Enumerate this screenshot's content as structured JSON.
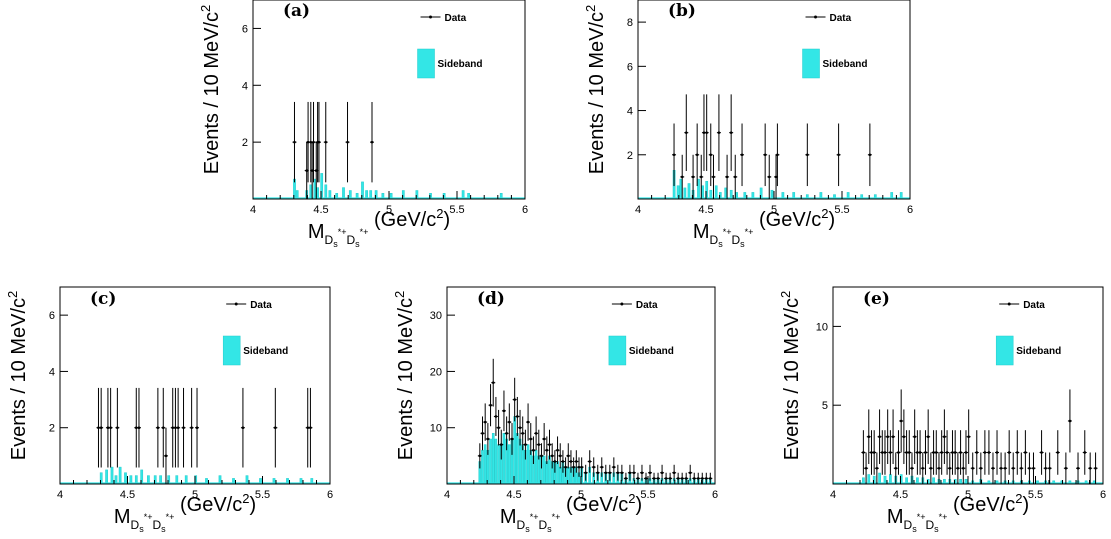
{
  "figure": {
    "ylabel": "Events / 10 MeV/c",
    "ylabel_sup": "2",
    "xlabel_main": "M",
    "xlabel_sub": "D",
    "xlabel_sub2": "s",
    "xlabel_sub_sup": "*+",
    "xlabel_sub3": "D",
    "xlabel_sub4": "s",
    "xlabel_sub4_sup": "*+",
    "xlabel_unit": "(GeV/c",
    "xlabel_unit_sup": "2",
    "xlabel_unit_close": ")",
    "legend_data": "Data",
    "legend_sideband": "Sideband"
  },
  "colors": {
    "sideband": "#33e6e6",
    "data": "#000000"
  },
  "chart_data": [
    {
      "type": "bar",
      "panel_label": "(a)",
      "xlim": [
        4,
        6
      ],
      "ylim": [
        0,
        7
      ],
      "xticks": [
        "4",
        "4.5",
        "5",
        "5.5",
        "6"
      ],
      "yticks": [
        "2",
        "4",
        "6"
      ],
      "ytick_values": [
        2,
        4,
        6
      ],
      "xtick_values": [
        4,
        4.5,
        5,
        5.5,
        6
      ],
      "series": [
        {
          "name": "Data",
          "x": [
            4.305,
            4.395,
            4.405,
            4.425,
            4.435,
            4.445,
            4.465,
            4.475,
            4.485,
            4.535,
            4.695,
            4.875
          ],
          "y": [
            2,
            1,
            2,
            2,
            1,
            2,
            1,
            2,
            2,
            2,
            2,
            2
          ]
        },
        {
          "name": "Sideband",
          "x": [
            4.305,
            4.325,
            4.395,
            4.425,
            4.455,
            4.475,
            4.505,
            4.535,
            4.565,
            4.615,
            4.665,
            4.715,
            4.765,
            4.805,
            4.835,
            4.865,
            4.905,
            4.955,
            5.015,
            5.105,
            5.205,
            5.305,
            5.405,
            5.545,
            5.585,
            5.825
          ],
          "y": [
            0.7,
            0.3,
            0.3,
            0.5,
            0.7,
            0.4,
            0.9,
            0.5,
            0.3,
            0.2,
            0.4,
            0.3,
            0.2,
            0.6,
            0.3,
            0.3,
            0.3,
            0.2,
            0.2,
            0.3,
            0.3,
            0.2,
            0.2,
            0.3,
            0.2,
            0.2
          ]
        }
      ]
    },
    {
      "type": "bar",
      "panel_label": "(b)",
      "xlim": [
        4,
        6
      ],
      "ylim": [
        0,
        9
      ],
      "xticks": [
        "4",
        "4.5",
        "5",
        "5.5",
        "6"
      ],
      "yticks": [
        "2",
        "4",
        "6",
        "8"
      ],
      "ytick_values": [
        2,
        4,
        6,
        8
      ],
      "xtick_values": [
        4,
        4.5,
        5,
        5.5,
        6
      ],
      "series": [
        {
          "name": "Data",
          "x": [
            4.265,
            4.325,
            4.355,
            4.405,
            4.435,
            4.465,
            4.485,
            4.505,
            4.535,
            4.555,
            4.595,
            4.655,
            4.685,
            4.715,
            4.765,
            4.935,
            4.965,
            5.015,
            5.025,
            5.245,
            5.475,
            5.705
          ],
          "y": [
            2,
            1,
            3,
            1,
            2,
            1,
            3,
            3,
            2,
            1,
            3,
            1,
            3,
            1,
            2,
            2,
            1,
            1,
            2,
            2,
            2,
            2
          ]
        },
        {
          "name": "Sideband",
          "x": [
            4.265,
            4.295,
            4.315,
            4.345,
            4.375,
            4.405,
            4.445,
            4.475,
            4.505,
            4.535,
            4.575,
            4.605,
            4.645,
            4.685,
            4.725,
            4.785,
            4.845,
            4.905,
            4.985,
            5.065,
            5.145,
            5.245,
            5.345,
            5.445,
            5.545,
            5.645,
            5.745,
            5.865,
            5.935
          ],
          "y": [
            1.3,
            0.6,
            0.9,
            0.5,
            0.7,
            0.4,
            0.9,
            0.6,
            0.8,
            0.4,
            0.6,
            0.3,
            0.5,
            0.4,
            0.3,
            0.3,
            0.3,
            0.5,
            0.4,
            0.3,
            0.3,
            0.2,
            0.3,
            0.2,
            0.3,
            0.2,
            0.2,
            0.3,
            0.3
          ]
        }
      ]
    },
    {
      "type": "bar",
      "panel_label": "(c)",
      "xlim": [
        4,
        6
      ],
      "ylim": [
        0,
        7
      ],
      "xticks": [
        "4",
        "4.5",
        "5",
        "5.5",
        "6"
      ],
      "yticks": [
        "2",
        "4",
        "6"
      ],
      "ytick_values": [
        2,
        4,
        6
      ],
      "xtick_values": [
        4,
        4.5,
        5,
        5.5,
        6
      ],
      "series": [
        {
          "name": "Data",
          "x": [
            4.285,
            4.305,
            4.355,
            4.375,
            4.425,
            4.565,
            4.585,
            4.725,
            4.765,
            4.785,
            4.835,
            4.855,
            4.875,
            4.915,
            4.975,
            5.015,
            5.355,
            5.595,
            5.835,
            5.855
          ],
          "y": [
            2,
            2,
            2,
            2,
            2,
            2,
            2,
            2,
            2,
            1,
            2,
            2,
            2,
            2,
            2,
            2,
            2,
            2,
            2,
            2
          ]
        },
        {
          "name": "Sideband",
          "x": [
            4.305,
            4.345,
            4.385,
            4.415,
            4.445,
            4.485,
            4.525,
            4.565,
            4.605,
            4.655,
            4.705,
            4.745,
            4.805,
            4.865,
            4.935,
            5.005,
            5.085,
            5.185,
            5.285,
            5.385,
            5.485,
            5.585,
            5.685,
            5.785,
            5.865
          ],
          "y": [
            0.4,
            0.5,
            0.6,
            0.3,
            0.6,
            0.4,
            0.3,
            0.3,
            0.5,
            0.3,
            0.3,
            0.3,
            0.3,
            0.3,
            0.3,
            0.3,
            0.2,
            0.3,
            0.2,
            0.3,
            0.2,
            0.2,
            0.2,
            0.2,
            0.2
          ]
        }
      ]
    },
    {
      "type": "bar",
      "panel_label": "(d)",
      "xlim": [
        4,
        6
      ],
      "ylim": [
        0,
        35
      ],
      "xticks": [
        "4",
        "4.5",
        "5",
        "5.5",
        "6"
      ],
      "yticks": [
        "10",
        "20",
        "30"
      ],
      "ytick_values": [
        10,
        20,
        30
      ],
      "xtick_values": [
        4,
        4.5,
        5,
        5.5,
        6
      ],
      "series": [
        {
          "name": "Data",
          "x": [
            4.245,
            4.265,
            4.285,
            4.305,
            4.325,
            4.345,
            4.365,
            4.385,
            4.405,
            4.425,
            4.445,
            4.465,
            4.485,
            4.505,
            4.525,
            4.545,
            4.565,
            4.585,
            4.605,
            4.625,
            4.645,
            4.665,
            4.685,
            4.705,
            4.725,
            4.745,
            4.765,
            4.785,
            4.805,
            4.825,
            4.845,
            4.865,
            4.885,
            4.905,
            4.925,
            4.945,
            4.965,
            4.985,
            5.005,
            5.035,
            5.065,
            5.095,
            5.125,
            5.155,
            5.185,
            5.215,
            5.245,
            5.275,
            5.305,
            5.335,
            5.365,
            5.395,
            5.425,
            5.455,
            5.485,
            5.515,
            5.545,
            5.575,
            5.605,
            5.635,
            5.665,
            5.695,
            5.725,
            5.755,
            5.785,
            5.815,
            5.845,
            5.875,
            5.905,
            5.935,
            5.965
          ],
          "y": [
            5,
            9,
            11,
            8,
            14,
            18,
            12,
            10,
            7,
            13,
            9,
            11,
            8,
            15,
            12,
            10,
            9,
            7,
            11,
            8,
            6,
            9,
            7,
            5,
            8,
            6,
            7,
            5,
            4,
            6,
            5,
            4,
            3,
            5,
            4,
            3,
            4,
            3,
            3,
            2,
            4,
            3,
            2,
            3,
            2,
            2,
            3,
            2,
            2,
            1,
            2,
            2,
            1,
            2,
            1,
            2,
            1,
            1,
            2,
            1,
            1,
            2,
            1,
            1,
            1,
            2,
            1,
            1,
            1,
            1,
            1
          ]
        },
        {
          "name": "Sideband",
          "x": [
            4.245,
            4.265,
            4.285,
            4.305,
            4.325,
            4.345,
            4.365,
            4.385,
            4.405,
            4.425,
            4.445,
            4.465,
            4.485,
            4.505,
            4.525,
            4.545,
            4.565,
            4.585,
            4.605,
            4.625,
            4.645,
            4.665,
            4.685,
            4.705,
            4.725,
            4.745,
            4.765,
            4.785,
            4.805,
            4.825,
            4.845,
            4.865,
            4.885,
            4.905,
            4.925,
            4.945,
            4.965,
            4.985,
            5.005,
            5.035,
            5.065,
            5.095,
            5.125,
            5.155,
            5.185,
            5.215,
            5.245,
            5.275,
            5.305,
            5.335,
            5.365,
            5.395,
            5.425,
            5.455,
            5.485,
            5.515,
            5.545,
            5.575,
            5.605,
            5.635,
            5.665,
            5.695,
            5.725,
            5.755,
            5.785,
            5.815,
            5.845,
            5.875,
            5.905,
            5.935,
            5.965
          ],
          "y": [
            4,
            6,
            7,
            6,
            8,
            9,
            8,
            7,
            7,
            9,
            8,
            7,
            8,
            12,
            9,
            8,
            7,
            6,
            7,
            6,
            5,
            6,
            5,
            5,
            5,
            4,
            5,
            4,
            4,
            4,
            3,
            4,
            3,
            3,
            3,
            3,
            3,
            2,
            3,
            2,
            3,
            2,
            2,
            2,
            2,
            2,
            2,
            2,
            2,
            1,
            2,
            1,
            1,
            1,
            1,
            1,
            1,
            1,
            1,
            1,
            1,
            1,
            1,
            1,
            1,
            1,
            1,
            1,
            1,
            1,
            1
          ]
        }
      ]
    },
    {
      "type": "bar",
      "panel_label": "(e)",
      "xlim": [
        4,
        6
      ],
      "ylim": [
        0,
        12.5
      ],
      "xticks": [
        "4",
        "4.5",
        "5",
        "5.5",
        "6"
      ],
      "yticks": [
        "5",
        "10"
      ],
      "ytick_values": [
        5,
        10
      ],
      "xtick_values": [
        4,
        4.5,
        5,
        5.5,
        6
      ],
      "series": [
        {
          "name": "Data",
          "x": [
            4.225,
            4.245,
            4.265,
            4.285,
            4.305,
            4.325,
            4.345,
            4.365,
            4.385,
            4.405,
            4.425,
            4.445,
            4.465,
            4.485,
            4.505,
            4.525,
            4.545,
            4.565,
            4.585,
            4.605,
            4.625,
            4.645,
            4.665,
            4.685,
            4.705,
            4.725,
            4.745,
            4.765,
            4.785,
            4.805,
            4.825,
            4.845,
            4.865,
            4.885,
            4.905,
            4.925,
            4.945,
            4.965,
            4.985,
            5.005,
            5.035,
            5.065,
            5.095,
            5.125,
            5.155,
            5.185,
            5.215,
            5.245,
            5.275,
            5.305,
            5.335,
            5.365,
            5.395,
            5.425,
            5.455,
            5.485,
            5.545,
            5.575,
            5.605,
            5.665,
            5.725,
            5.755,
            5.815,
            5.865,
            5.905,
            5.945
          ],
          "y": [
            2,
            1,
            3,
            2,
            2,
            1,
            3,
            2,
            2,
            3,
            2,
            3,
            1,
            2,
            4,
            3,
            2,
            2,
            1,
            3,
            2,
            2,
            1,
            2,
            3,
            1,
            2,
            2,
            1,
            2,
            3,
            2,
            1,
            2,
            2,
            1,
            2,
            1,
            2,
            3,
            1,
            2,
            1,
            2,
            2,
            1,
            2,
            1,
            1,
            2,
            1,
            2,
            1,
            2,
            1,
            1,
            2,
            1,
            1,
            2,
            1,
            4,
            1,
            2,
            1,
            1
          ]
        },
        {
          "name": "Sideband",
          "x": [
            4.225,
            4.265,
            4.305,
            4.345,
            4.385,
            4.425,
            4.465,
            4.505,
            4.545,
            4.585,
            4.625,
            4.665,
            4.705,
            4.745,
            4.785,
            4.825,
            4.865,
            4.905,
            4.945,
            4.985,
            5.035,
            5.095,
            5.155,
            5.215,
            5.275,
            5.335,
            5.395,
            5.455,
            5.515,
            5.575,
            5.635,
            5.695,
            5.755,
            5.815,
            5.875,
            5.935
          ],
          "y": [
            0.4,
            0.6,
            0.5,
            0.7,
            0.5,
            0.6,
            0.5,
            0.6,
            0.4,
            0.5,
            0.4,
            0.4,
            0.3,
            0.4,
            0.3,
            0.3,
            0.3,
            0.3,
            0.3,
            0.3,
            0.2,
            0.3,
            0.2,
            0.2,
            0.2,
            0.2,
            0.2,
            0.2,
            0.2,
            0.2,
            0.2,
            0.2,
            0.2,
            0.2,
            0.2,
            0.2
          ]
        }
      ]
    }
  ]
}
